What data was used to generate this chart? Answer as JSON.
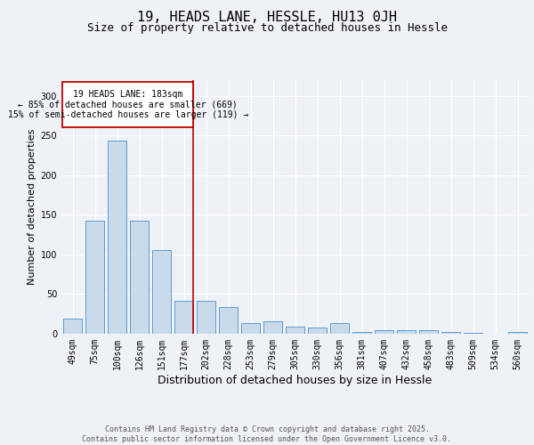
{
  "title": "19, HEADS LANE, HESSLE, HU13 0JH",
  "subtitle": "Size of property relative to detached houses in Hessle",
  "xlabel": "Distribution of detached houses by size in Hessle",
  "ylabel": "Number of detached properties",
  "categories": [
    "49sqm",
    "75sqm",
    "100sqm",
    "126sqm",
    "151sqm",
    "177sqm",
    "202sqm",
    "228sqm",
    "253sqm",
    "279sqm",
    "305sqm",
    "330sqm",
    "356sqm",
    "381sqm",
    "407sqm",
    "432sqm",
    "458sqm",
    "483sqm",
    "509sqm",
    "534sqm",
    "560sqm"
  ],
  "values": [
    19,
    143,
    244,
    143,
    106,
    42,
    42,
    34,
    14,
    16,
    9,
    8,
    14,
    2,
    5,
    5,
    4,
    2,
    1,
    0,
    2
  ],
  "bar_color": "#c9daea",
  "bar_edge_color": "#5b9bd5",
  "vline_x_index": 5,
  "vline_color": "#c00000",
  "annotation_text": "19 HEADS LANE: 183sqm\n← 85% of detached houses are smaller (669)\n15% of semi-detached houses are larger (119) →",
  "annotation_box_color": "#ffffff",
  "annotation_box_edge_color": "#c00000",
  "ylim": [
    0,
    320
  ],
  "yticks": [
    0,
    50,
    100,
    150,
    200,
    250,
    300
  ],
  "background_color": "#eef2f7",
  "plot_bg_color": "#eef2f7",
  "footer_text": "Contains HM Land Registry data © Crown copyright and database right 2025.\nContains public sector information licensed under the Open Government Licence v3.0.",
  "title_fontsize": 11,
  "subtitle_fontsize": 9,
  "xlabel_fontsize": 9,
  "ylabel_fontsize": 8,
  "tick_fontsize": 7,
  "annotation_fontsize": 7,
  "footer_fontsize": 6
}
